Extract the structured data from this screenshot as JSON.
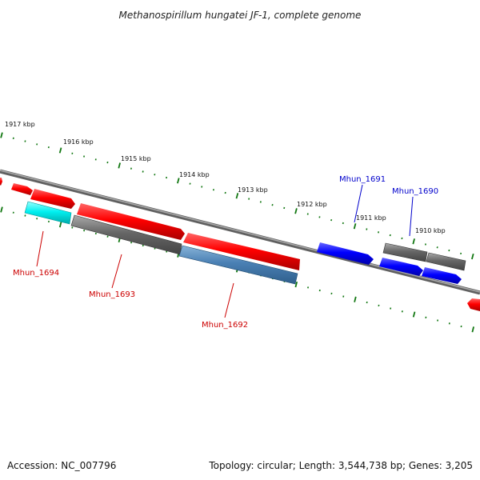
{
  "title": "Methanospirillum hungatei JF-1, complete genome",
  "footer": {
    "accession": "Accession: NC_007796",
    "summary": "Topology: circular; Length: 3,544,738 bp; Genes: 3,205"
  },
  "scale_labels": [
    "1917 kbp",
    "1916 kbp",
    "1915 kbp",
    "1914 kbp",
    "1913 kbp",
    "1912 kbp",
    "1911 kbp",
    "1910 kbp"
  ],
  "gene_labels": [
    {
      "name": "Mhun_1694",
      "color": "#cc0000"
    },
    {
      "name": "Mhun_1693",
      "color": "#cc0000"
    },
    {
      "name": "Mhun_1692",
      "color": "#cc0000"
    },
    {
      "name": "Mhun_1691",
      "color": "#0000cc"
    },
    {
      "name": "Mhun_1690",
      "color": "#0000cc"
    }
  ],
  "colors": {
    "forward_gene": "#ee0000",
    "reverse_gene": "#0000ee",
    "hypothetical": "#666666",
    "cyan_gene": "#00e0e0",
    "steel_gene": "#4a7fb0",
    "backbone": "#888888",
    "ticks": "#117711"
  }
}
